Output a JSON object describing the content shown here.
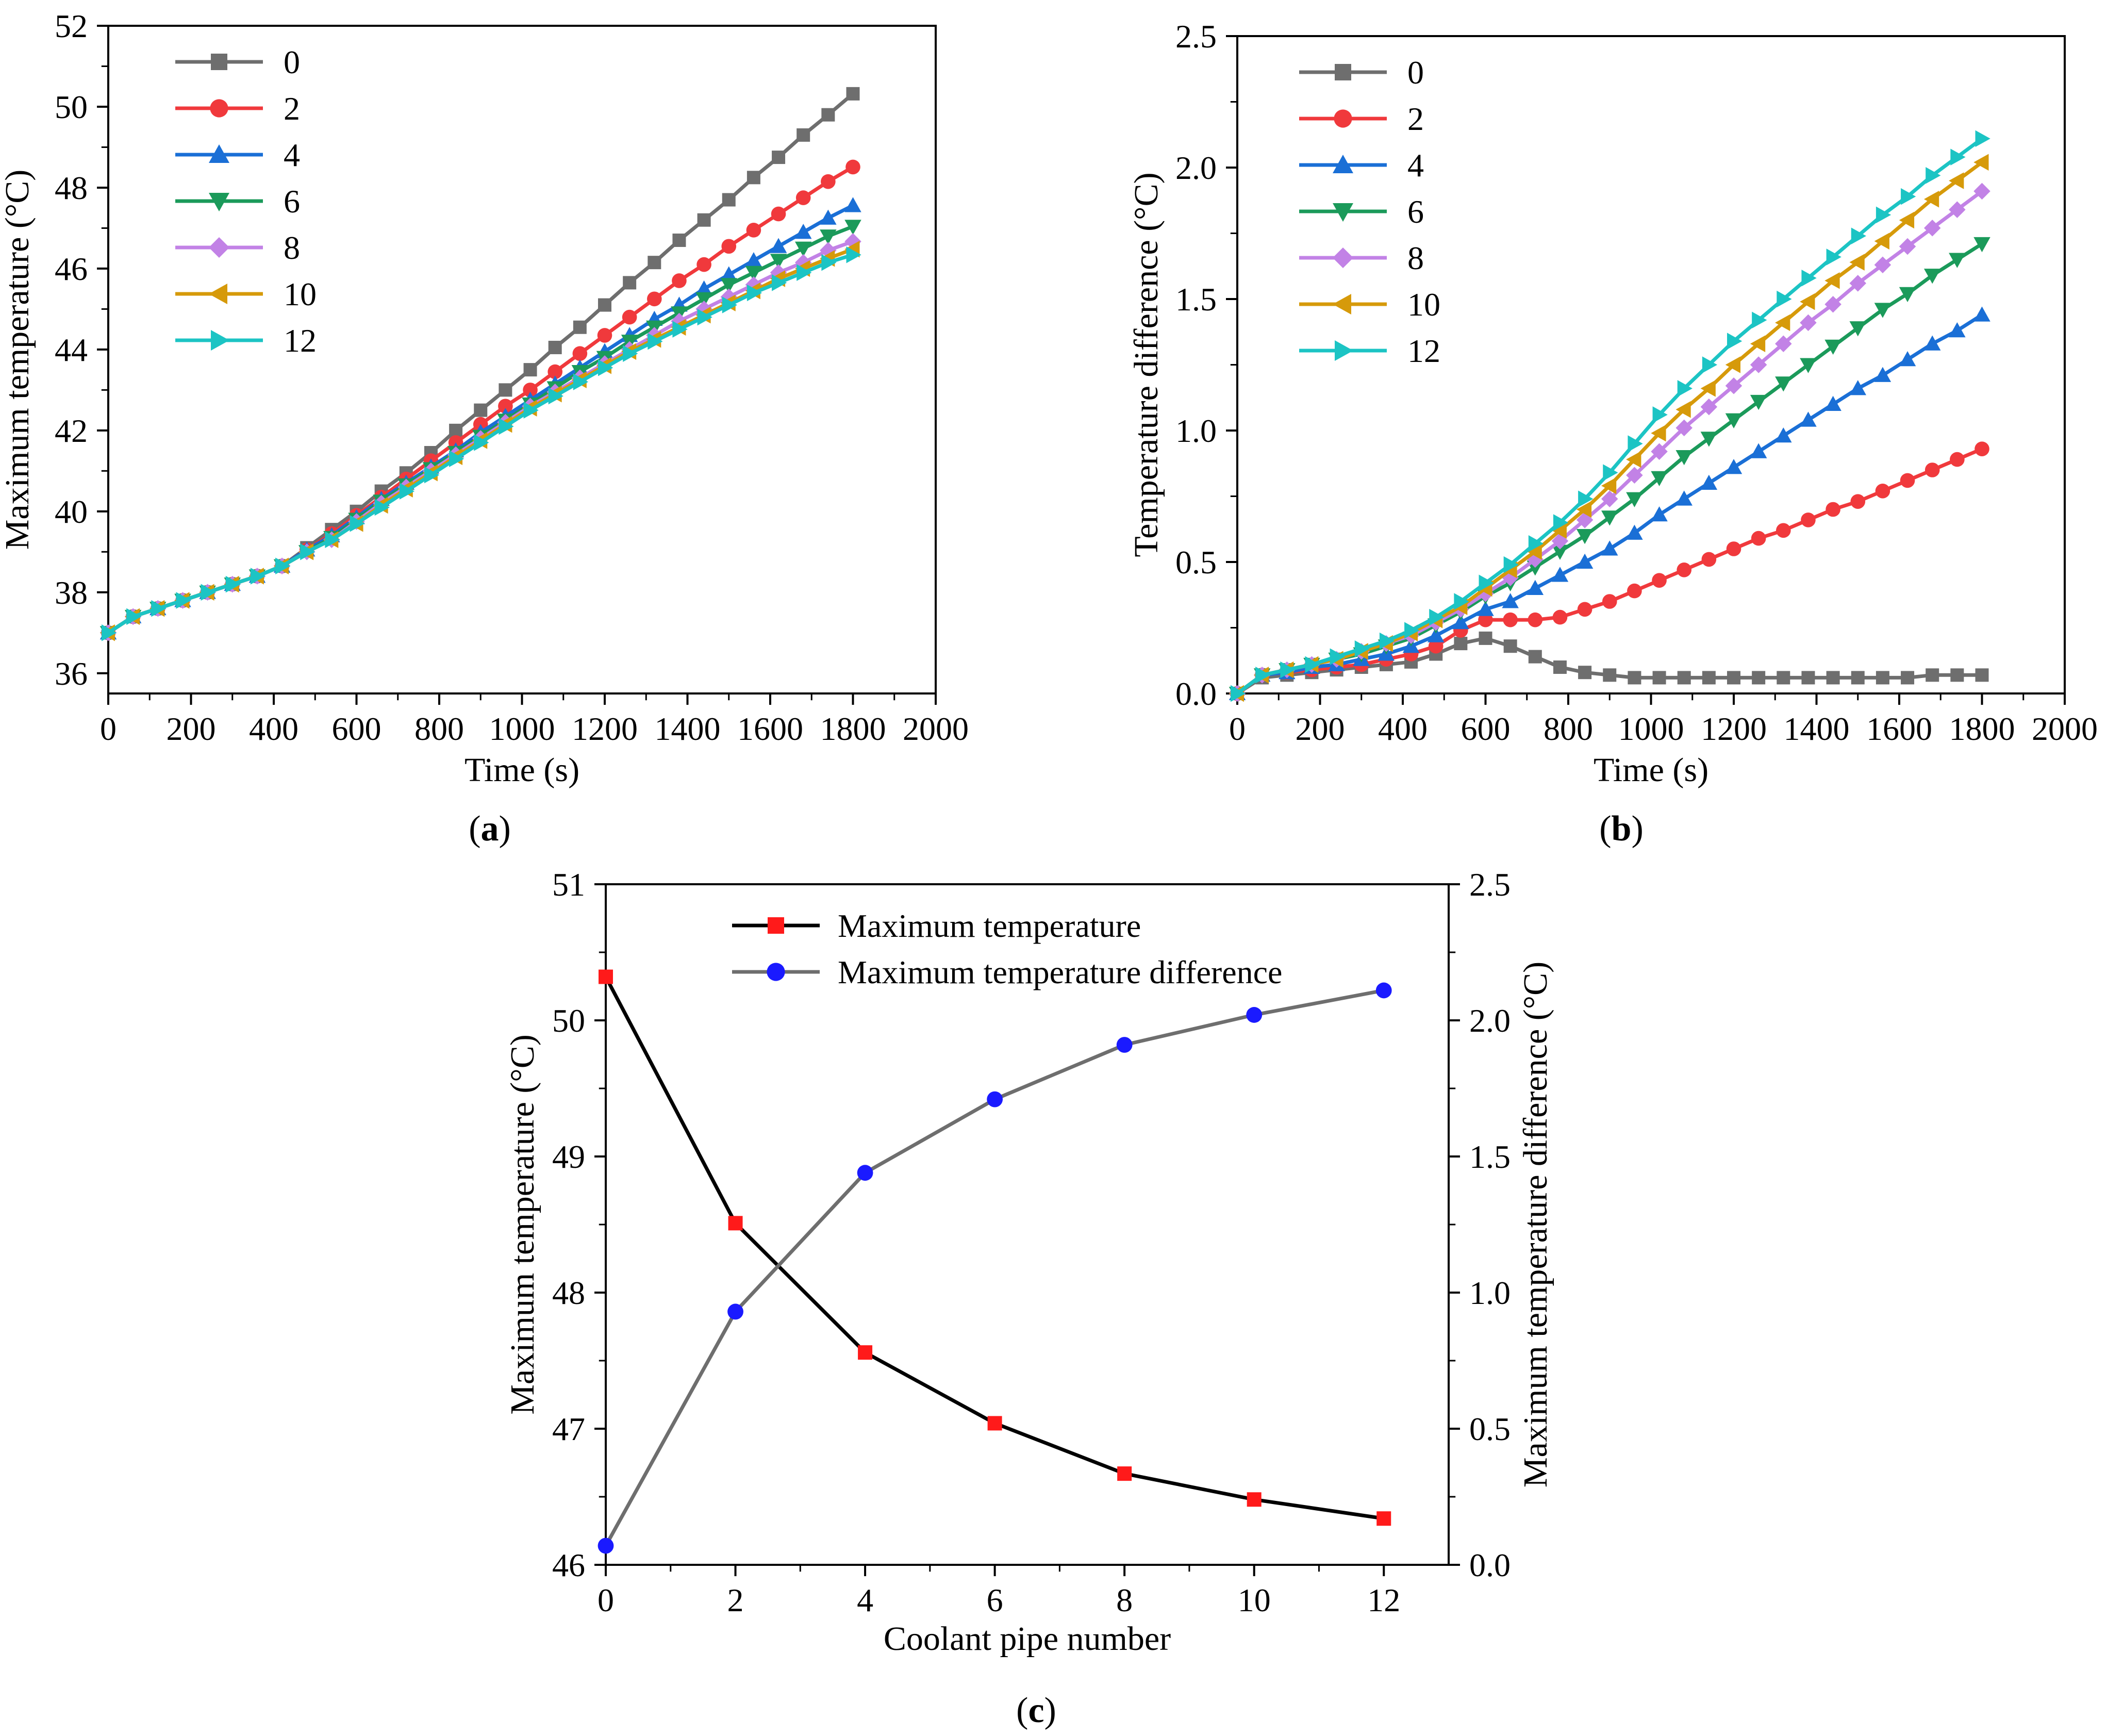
{
  "figure": {
    "panels": [
      {
        "id": "a",
        "label_open": "(",
        "label_letter": "a",
        "label_close": ")"
      },
      {
        "id": "b",
        "label_open": "(",
        "label_letter": "b",
        "label_close": ")"
      },
      {
        "id": "c",
        "label_open": "(",
        "label_letter": "c",
        "label_close": ")"
      }
    ]
  },
  "styles": {
    "series_colors": {
      "0": "#6e6e6e",
      "2": "#f0393c",
      "4": "#1a6fd6",
      "6": "#1b9a5a",
      "8": "#c282e6",
      "10": "#d69a0a",
      "12": "#1cc4c4"
    },
    "series_markers": {
      "0": "square",
      "2": "circle",
      "4": "triangle-up",
      "6": "triangle-down",
      "8": "diamond",
      "10": "triangle-left",
      "12": "triangle-right"
    }
  },
  "chart_data": [
    {
      "id": "a",
      "type": "line",
      "title": "",
      "xlabel": "Time (s)",
      "ylabel": "Maximum temperature (°C)",
      "xlim": [
        0,
        2000
      ],
      "ylim": [
        35.5,
        52
      ],
      "xticks": [
        "0",
        "200",
        "400",
        "600",
        "800",
        "1000",
        "1200",
        "1400",
        "1600",
        "1800",
        "2000"
      ],
      "yticks": [
        "36",
        "38",
        "40",
        "42",
        "44",
        "46",
        "48",
        "50",
        "52"
      ],
      "legend": "top-left",
      "x": [
        0,
        60,
        120,
        180,
        240,
        300,
        360,
        420,
        480,
        540,
        600,
        660,
        720,
        780,
        840,
        900,
        960,
        1020,
        1080,
        1140,
        1200,
        1260,
        1320,
        1380,
        1440,
        1500,
        1560,
        1620,
        1680,
        1740,
        1800
      ],
      "series": [
        {
          "name": "0",
          "values": [
            37.0,
            37.4,
            37.6,
            37.8,
            38.0,
            38.2,
            38.4,
            38.65,
            39.1,
            39.55,
            40.0,
            40.5,
            40.95,
            41.45,
            42.0,
            42.5,
            43.0,
            43.5,
            44.05,
            44.55,
            45.1,
            45.65,
            46.15,
            46.7,
            47.2,
            47.7,
            48.25,
            48.75,
            49.3,
            49.8,
            50.32
          ]
        },
        {
          "name": "2",
          "values": [
            37.0,
            37.4,
            37.6,
            37.8,
            38.0,
            38.2,
            38.4,
            38.65,
            39.05,
            39.45,
            39.9,
            40.35,
            40.8,
            41.25,
            41.7,
            42.15,
            42.6,
            43.0,
            43.45,
            43.9,
            44.35,
            44.8,
            45.25,
            45.7,
            46.1,
            46.55,
            46.95,
            47.35,
            47.75,
            48.15,
            48.51
          ]
        },
        {
          "name": "4",
          "values": [
            37.0,
            37.4,
            37.6,
            37.8,
            38.0,
            38.2,
            38.4,
            38.65,
            39.05,
            39.4,
            39.85,
            40.3,
            40.7,
            41.1,
            41.5,
            41.95,
            42.35,
            42.75,
            43.15,
            43.55,
            43.95,
            44.35,
            44.75,
            45.1,
            45.5,
            45.85,
            46.2,
            46.55,
            46.9,
            47.25,
            47.56
          ]
        },
        {
          "name": "6",
          "values": [
            37.0,
            37.4,
            37.6,
            37.8,
            38.0,
            38.2,
            38.4,
            38.65,
            39.0,
            39.35,
            39.8,
            40.25,
            40.65,
            41.05,
            41.45,
            41.85,
            42.25,
            42.65,
            43.05,
            43.45,
            43.8,
            44.2,
            44.55,
            44.9,
            45.25,
            45.6,
            45.9,
            46.2,
            46.5,
            46.8,
            47.04
          ]
        },
        {
          "name": "8",
          "values": [
            37.0,
            37.4,
            37.6,
            37.8,
            38.0,
            38.2,
            38.4,
            38.65,
            39.0,
            39.3,
            39.75,
            40.2,
            40.6,
            41.0,
            41.4,
            41.8,
            42.2,
            42.6,
            42.95,
            43.3,
            43.65,
            44.0,
            44.35,
            44.7,
            45.0,
            45.3,
            45.6,
            45.9,
            46.15,
            46.45,
            46.67
          ]
        },
        {
          "name": "10",
          "values": [
            37.0,
            37.4,
            37.6,
            37.8,
            38.0,
            38.2,
            38.4,
            38.65,
            39.0,
            39.3,
            39.7,
            40.15,
            40.55,
            40.95,
            41.35,
            41.75,
            42.15,
            42.55,
            42.9,
            43.25,
            43.6,
            43.95,
            44.25,
            44.55,
            44.85,
            45.15,
            45.45,
            45.75,
            46.0,
            46.25,
            46.48
          ]
        },
        {
          "name": "12",
          "values": [
            37.0,
            37.4,
            37.6,
            37.8,
            38.0,
            38.2,
            38.4,
            38.65,
            39.0,
            39.3,
            39.7,
            40.1,
            40.5,
            40.9,
            41.3,
            41.7,
            42.1,
            42.5,
            42.85,
            43.2,
            43.55,
            43.9,
            44.2,
            44.5,
            44.8,
            45.1,
            45.4,
            45.65,
            45.9,
            46.15,
            46.34
          ]
        }
      ]
    },
    {
      "id": "b",
      "type": "line",
      "title": "",
      "xlabel": "Time (s)",
      "ylabel": "Temperature difference (°C)",
      "xlim": [
        0,
        2000
      ],
      "ylim": [
        0,
        2.5
      ],
      "xticks": [
        "0",
        "200",
        "400",
        "600",
        "800",
        "1000",
        "1200",
        "1400",
        "1600",
        "1800",
        "2000"
      ],
      "yticks": [
        "0.0",
        "0.5",
        "1.0",
        "1.5",
        "2.0",
        "2.5"
      ],
      "legend": "top-left",
      "x": [
        0,
        60,
        120,
        180,
        240,
        300,
        360,
        420,
        480,
        540,
        600,
        660,
        720,
        780,
        840,
        900,
        960,
        1020,
        1080,
        1140,
        1200,
        1260,
        1320,
        1380,
        1440,
        1500,
        1560,
        1620,
        1680,
        1740,
        1800
      ],
      "series": [
        {
          "name": "0",
          "values": [
            0.0,
            0.06,
            0.07,
            0.08,
            0.09,
            0.1,
            0.11,
            0.12,
            0.15,
            0.19,
            0.21,
            0.18,
            0.14,
            0.1,
            0.08,
            0.07,
            0.06,
            0.06,
            0.06,
            0.06,
            0.06,
            0.06,
            0.06,
            0.06,
            0.06,
            0.06,
            0.06,
            0.06,
            0.07,
            0.07,
            0.07
          ]
        },
        {
          "name": "2",
          "values": [
            0.0,
            0.07,
            0.08,
            0.09,
            0.1,
            0.11,
            0.13,
            0.15,
            0.18,
            0.24,
            0.28,
            0.28,
            0.28,
            0.29,
            0.32,
            0.35,
            0.39,
            0.43,
            0.47,
            0.51,
            0.55,
            0.59,
            0.62,
            0.66,
            0.7,
            0.73,
            0.77,
            0.81,
            0.85,
            0.89,
            0.93
          ]
        },
        {
          "name": "4",
          "values": [
            0.0,
            0.07,
            0.08,
            0.1,
            0.11,
            0.13,
            0.15,
            0.18,
            0.22,
            0.27,
            0.32,
            0.35,
            0.4,
            0.45,
            0.5,
            0.55,
            0.61,
            0.68,
            0.74,
            0.8,
            0.86,
            0.92,
            0.98,
            1.04,
            1.1,
            1.16,
            1.21,
            1.27,
            1.33,
            1.38,
            1.44
          ]
        },
        {
          "name": "6",
          "values": [
            0.0,
            0.07,
            0.09,
            0.11,
            0.13,
            0.15,
            0.18,
            0.21,
            0.26,
            0.31,
            0.37,
            0.42,
            0.48,
            0.54,
            0.6,
            0.67,
            0.74,
            0.82,
            0.9,
            0.97,
            1.04,
            1.11,
            1.18,
            1.25,
            1.32,
            1.39,
            1.46,
            1.52,
            1.59,
            1.65,
            1.71
          ]
        },
        {
          "name": "8",
          "values": [
            0.0,
            0.07,
            0.09,
            0.11,
            0.13,
            0.16,
            0.19,
            0.22,
            0.27,
            0.32,
            0.38,
            0.44,
            0.51,
            0.58,
            0.66,
            0.74,
            0.83,
            0.92,
            1.01,
            1.09,
            1.17,
            1.25,
            1.33,
            1.41,
            1.48,
            1.56,
            1.63,
            1.7,
            1.77,
            1.84,
            1.91
          ]
        },
        {
          "name": "10",
          "values": [
            0.0,
            0.07,
            0.09,
            0.11,
            0.13,
            0.16,
            0.19,
            0.23,
            0.28,
            0.33,
            0.4,
            0.47,
            0.54,
            0.62,
            0.7,
            0.79,
            0.89,
            0.99,
            1.08,
            1.16,
            1.25,
            1.33,
            1.41,
            1.49,
            1.57,
            1.64,
            1.72,
            1.8,
            1.88,
            1.95,
            2.02
          ]
        },
        {
          "name": "12",
          "values": [
            0.0,
            0.07,
            0.09,
            0.11,
            0.14,
            0.17,
            0.2,
            0.24,
            0.29,
            0.35,
            0.42,
            0.49,
            0.57,
            0.65,
            0.74,
            0.84,
            0.95,
            1.06,
            1.16,
            1.25,
            1.34,
            1.42,
            1.5,
            1.58,
            1.66,
            1.74,
            1.82,
            1.89,
            1.97,
            2.04,
            2.11
          ]
        }
      ]
    },
    {
      "id": "c",
      "type": "line",
      "title": "",
      "xlabel": "Coolant pipe number",
      "ylabel": "Maximum temperature (°C)",
      "ylabel_right": "Maximum temperature difference (°C)",
      "xlim": [
        0,
        13
      ],
      "ylim": [
        46,
        51
      ],
      "ylim_right": [
        0,
        2.5
      ],
      "xticks": [
        "0",
        "2",
        "4",
        "6",
        "8",
        "10",
        "12"
      ],
      "yticks": [
        "46",
        "47",
        "48",
        "49",
        "50",
        "51"
      ],
      "yticks_right": [
        "0.0",
        "0.5",
        "1.0",
        "1.5",
        "2.0",
        "2.5"
      ],
      "legend": "top-center",
      "x": [
        0,
        2,
        4,
        6,
        8,
        10,
        12
      ],
      "series": [
        {
          "name": "Maximum temperature",
          "axis": "left",
          "line_color": "#000000",
          "marker_color": "#ff1a1a",
          "marker": "square",
          "values": [
            50.32,
            48.51,
            47.56,
            47.04,
            46.67,
            46.48,
            46.34
          ]
        },
        {
          "name": "Maximum temperature difference",
          "axis": "right",
          "line_color": "#6e6e6e",
          "marker_color": "#1a1aff",
          "marker": "circle",
          "values": [
            0.07,
            0.93,
            1.44,
            1.71,
            1.91,
            2.02,
            2.11
          ]
        }
      ]
    }
  ]
}
